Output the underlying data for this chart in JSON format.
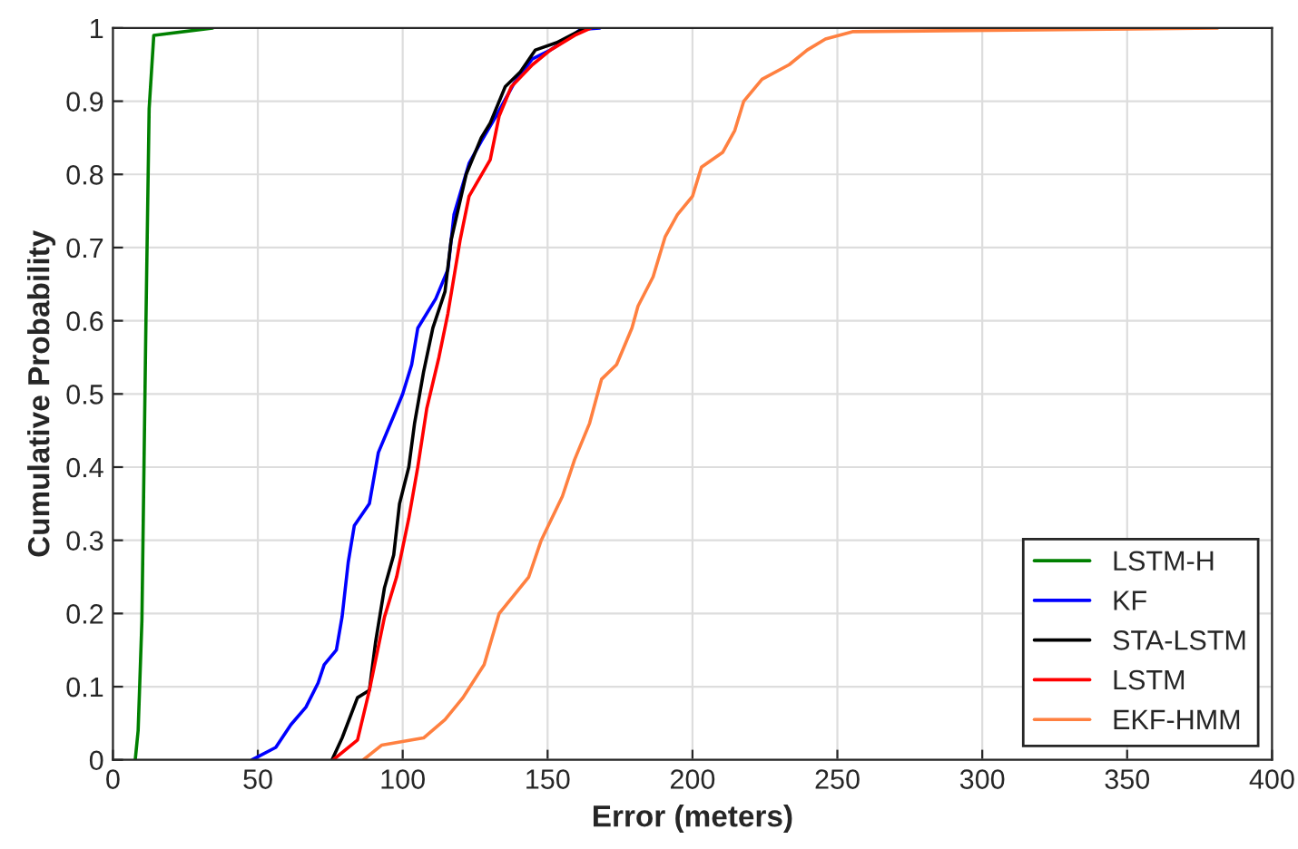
{
  "chart_data": {
    "type": "line",
    "xlabel": "Error (meters)",
    "ylabel": "Cumulative Probability",
    "xlim": [
      0,
      400
    ],
    "ylim": [
      0,
      1
    ],
    "xticks": [
      0,
      50,
      100,
      150,
      200,
      250,
      300,
      350,
      400
    ],
    "yticks": [
      0,
      0.1,
      0.2,
      0.3,
      0.4,
      0.5,
      0.6,
      0.7,
      0.8,
      0.9,
      1
    ],
    "grid": true,
    "legend": "bottom right",
    "marker": "none",
    "line_style": "solid",
    "series": [
      {
        "name": "LSTM-H",
        "color": "#008000",
        "x": [
          7.7,
          8.7,
          10,
          11.4,
          12.5,
          14.1,
          34.4
        ],
        "values": [
          0,
          0.04,
          0.19,
          0.6,
          0.89,
          0.99,
          1
        ]
      },
      {
        "name": "KF",
        "color": "#0000ff",
        "x": [
          48,
          56.2,
          61.4,
          66.6,
          70.8,
          72.9,
          77.1,
          79.1,
          81.2,
          83.3,
          88.5,
          91.6,
          96.9,
          100,
          103.1,
          105.2,
          111.4,
          115.6,
          117.7,
          122.9,
          127.1,
          132.3,
          138.5,
          144.8,
          151,
          157.3,
          161.4,
          168
        ],
        "values": [
          0,
          0.017,
          0.048,
          0.072,
          0.105,
          0.13,
          0.15,
          0.196,
          0.27,
          0.32,
          0.35,
          0.42,
          0.47,
          0.5,
          0.54,
          0.59,
          0.63,
          0.67,
          0.745,
          0.815,
          0.845,
          0.88,
          0.925,
          0.958,
          0.97,
          0.986,
          0.998,
          1
        ]
      },
      {
        "name": "STA-LSTM",
        "color": "#000000",
        "x": [
          75.6,
          79.1,
          84.4,
          88.5,
          90.6,
          93.7,
          96.9,
          98.9,
          102.1,
          104.1,
          107.2,
          110.4,
          114.6,
          116.7,
          121.9,
          127.1,
          130.2,
          135.4,
          140.6,
          145.8,
          153.1,
          161.4,
          163
        ],
        "values": [
          0,
          0.03,
          0.085,
          0.095,
          0.16,
          0.235,
          0.28,
          0.35,
          0.4,
          0.46,
          0.53,
          0.59,
          0.64,
          0.71,
          0.8,
          0.85,
          0.87,
          0.92,
          0.94,
          0.97,
          0.98,
          0.997,
          1
        ]
      },
      {
        "name": "LSTM",
        "color": "#ff0000",
        "x": [
          76,
          84.4,
          88.5,
          93.7,
          97.9,
          102.1,
          105.2,
          108.3,
          112.5,
          115.6,
          117.7,
          119.8,
          122.9,
          130.2,
          133.3,
          137.5,
          144.8,
          151,
          159.4,
          165
        ],
        "values": [
          0,
          0.027,
          0.095,
          0.195,
          0.25,
          0.33,
          0.4,
          0.48,
          0.55,
          0.61,
          0.66,
          0.71,
          0.77,
          0.82,
          0.88,
          0.92,
          0.95,
          0.97,
          0.99,
          1
        ]
      },
      {
        "name": "EKF-HMM",
        "color": "#ff8040",
        "x": [
          86.4,
          92.7,
          107.2,
          114.6,
          120.8,
          128.1,
          133.3,
          143.5,
          147.8,
          155.1,
          159.3,
          164.5,
          168.6,
          173.8,
          179.1,
          181.2,
          186.4,
          190.6,
          194.8,
          200,
          203.1,
          210.4,
          214.6,
          217.7,
          224,
          233.4,
          239.6,
          245.9,
          255.2,
          381.2
        ],
        "values": [
          0,
          0.02,
          0.03,
          0.055,
          0.085,
          0.13,
          0.2,
          0.25,
          0.3,
          0.36,
          0.41,
          0.46,
          0.52,
          0.54,
          0.59,
          0.62,
          0.66,
          0.715,
          0.745,
          0.77,
          0.81,
          0.83,
          0.86,
          0.9,
          0.93,
          0.95,
          0.97,
          0.985,
          0.995,
          1
        ]
      }
    ]
  }
}
